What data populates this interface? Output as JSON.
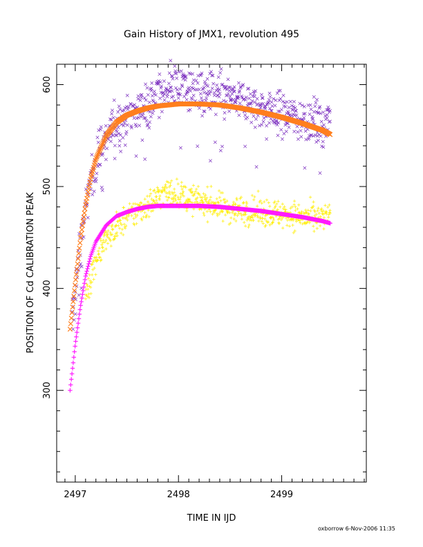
{
  "chart_data": {
    "type": "scatter",
    "title": "Gain History of JMX1, revolution 495",
    "xlabel": "TIME IN IJD",
    "ylabel": "POSITION OF Cd CALIBRATION PEAK",
    "xlim": [
      2496.82,
      2499.82
    ],
    "ylim": [
      210,
      620
    ],
    "xticks": [
      2497,
      2498,
      2499
    ],
    "yticks": [
      300,
      400,
      500,
      600
    ],
    "grid": false,
    "series": [
      {
        "kind": "scatter",
        "marker": "x",
        "color": "#7b2fbf",
        "x": [
          2496.97,
          2497.0,
          2497.05,
          2497.1,
          2497.15,
          2497.2,
          2497.25,
          2497.3,
          2497.35,
          2497.4,
          2497.45,
          2497.5,
          2497.55,
          2497.6,
          2497.7,
          2497.8,
          2497.9,
          2498.0,
          2498.1,
          2498.2,
          2498.3,
          2498.4,
          2498.5,
          2498.6,
          2498.7,
          2498.8,
          2498.9,
          2499.0,
          2499.1,
          2499.2,
          2499.3,
          2499.4,
          2499.47
        ],
        "y": [
          365,
          400,
          440,
          480,
          505,
          524,
          538,
          548,
          556,
          562,
          566,
          570,
          573,
          575,
          580,
          588,
          595,
          598,
          596,
          592,
          590,
          589,
          587,
          584,
          580,
          577,
          574,
          572,
          570,
          567,
          564,
          561,
          568
        ]
      },
      {
        "kind": "fit",
        "marker": "x",
        "color": "#ff7f1e",
        "x": [
          2496.95,
          2497.0,
          2497.05,
          2497.1,
          2497.15,
          2497.2,
          2497.3,
          2497.4,
          2497.5,
          2497.6,
          2497.7,
          2497.8,
          2497.9,
          2498.0,
          2498.1,
          2498.2,
          2498.4,
          2498.6,
          2498.8,
          2499.0,
          2499.2,
          2499.4,
          2499.47
        ],
        "y": [
          360,
          405,
          448,
          482,
          508,
          527,
          550,
          563,
          570,
          574,
          577,
          579,
          580,
          581,
          581,
          581,
          580,
          577,
          573,
          568,
          562,
          555,
          551
        ]
      },
      {
        "kind": "scatter",
        "marker": "+",
        "color": "#ffee00",
        "x": [
          2497.1,
          2497.15,
          2497.2,
          2497.25,
          2497.3,
          2497.35,
          2497.4,
          2497.45,
          2497.5,
          2497.55,
          2497.6,
          2497.7,
          2497.8,
          2497.9,
          2498.0,
          2498.1,
          2498.2,
          2498.3,
          2498.4,
          2498.5,
          2498.6,
          2498.7,
          2498.8,
          2498.9,
          2499.0,
          2499.1,
          2499.2,
          2499.3,
          2499.4,
          2499.47
        ],
        "y": [
          395,
          410,
          428,
          440,
          448,
          455,
          460,
          465,
          470,
          472,
          476,
          482,
          490,
          495,
          492,
          488,
          486,
          484,
          480,
          478,
          477,
          476,
          475,
          474,
          473,
          472,
          470,
          468,
          468,
          472
        ]
      },
      {
        "kind": "fit",
        "marker": "+",
        "color": "#ff1aff",
        "x": [
          2496.95,
          2497.0,
          2497.05,
          2497.1,
          2497.15,
          2497.2,
          2497.3,
          2497.4,
          2497.5,
          2497.6,
          2497.7,
          2497.8,
          2497.9,
          2498.0,
          2498.1,
          2498.2,
          2498.4,
          2498.6,
          2498.8,
          2499.0,
          2499.2,
          2499.4,
          2499.47
        ],
        "y": [
          300,
          345,
          382,
          412,
          432,
          446,
          462,
          471,
          475,
          478,
          480,
          481,
          481,
          481,
          481,
          481,
          480,
          478,
          476,
          473,
          470,
          466,
          464
        ]
      }
    ]
  },
  "footer": "oxborrow   6-Nov-2006 11:35"
}
